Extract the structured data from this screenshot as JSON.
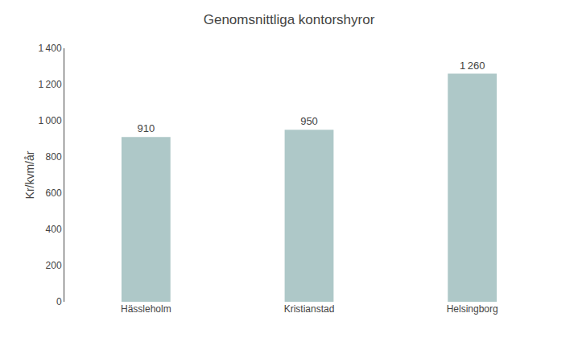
{
  "chart_data": {
    "type": "bar",
    "title": "Genomsnittliga kontorshyror",
    "ylabel": "Kr/kvm/år",
    "categories": [
      "Hässleholm",
      "Kristianstad",
      "Helsingborg"
    ],
    "values": [
      910,
      950,
      1260
    ],
    "value_labels": [
      "910",
      "950",
      "1 260"
    ],
    "data_labels": true,
    "color": "#aec8c8",
    "ylim": [
      0,
      1400
    ],
    "yticks": [
      0,
      200,
      400,
      600,
      800,
      {
        "value": 1000,
        "label": "1 000"
      },
      {
        "value": 1200,
        "label": "1 200"
      },
      {
        "value": 1400,
        "label": "1 400"
      }
    ],
    "grid": false
  }
}
